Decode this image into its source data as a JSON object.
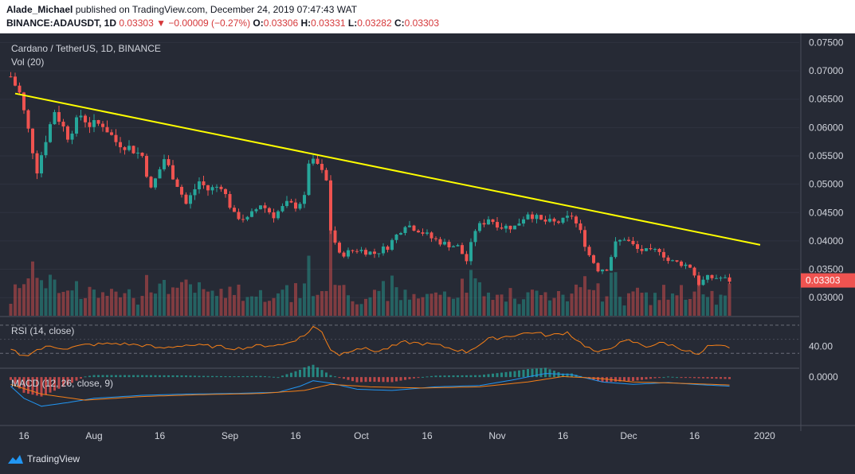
{
  "header": {
    "author": "Alade_Michael",
    "published": " published on TradingView.com, December 24, 2019 07:47:43 WAT",
    "symbol": "BINANCE:ADAUSDT, 1D",
    "last": "0.03303",
    "change": "−0.00009 (−0.27%)",
    "o_label": "O:",
    "o": "0.03306",
    "h_label": "H:",
    "h": "0.03331",
    "l_label": "L:",
    "l": "0.03282",
    "c_label": "C:",
    "c": "0.03303"
  },
  "footer": {
    "brand": "TradingView"
  },
  "colors": {
    "background": "#262a35",
    "up": "#26a69a",
    "down": "#ef5350",
    "trendline": "#ffff00",
    "rsi": "#f57f17",
    "macd": "#2196f3",
    "signal": "#f57f17"
  },
  "chart_data": {
    "type": "candlestick",
    "title": "Cardano / TetherUS, 1D, BINANCE",
    "volume_label": "Vol (20)",
    "rsi_label": "RSI (14, close)",
    "macd_label": "MACD (12, 26, close, 9)",
    "last_price_label": "0.03303",
    "price_axis": {
      "ticks": [
        0.075,
        0.07,
        0.065,
        0.06,
        0.055,
        0.05,
        0.045,
        0.04,
        0.035,
        0.03
      ],
      "tick_labels": [
        "0.07500",
        "0.07000",
        "0.06500",
        "0.06000",
        "0.05500",
        "0.05000",
        "0.04500",
        "0.04000",
        "0.03500",
        "0.03000"
      ]
    },
    "rsi_axis": {
      "tick": 40,
      "tick_label": "40.00",
      "upper_band": 70,
      "lower_band": 30,
      "range": [
        10,
        80
      ]
    },
    "macd_axis": {
      "tick": 0,
      "tick_label": "0.0000",
      "range": [
        -0.0068,
        0.0012
      ]
    },
    "x_axis": {
      "ticks": [
        "2019-07-16",
        "2019-08-01",
        "2019-08-16",
        "2019-09-01",
        "2019-09-16",
        "2019-10-01",
        "2019-10-16",
        "2019-11-01",
        "2019-11-16",
        "2019-12-01",
        "2019-12-16",
        "2020-01-01"
      ],
      "tick_labels": [
        "16",
        "Aug",
        "16",
        "Sep",
        "16",
        "Oct",
        "16",
        "Nov",
        "16",
        "Dec",
        "16",
        "2020"
      ]
    },
    "start_date": "2019-07-13",
    "trendline": {
      "from": [
        "2019-07-14",
        0.066
      ],
      "to": [
        "2019-12-31",
        0.0393
      ]
    },
    "price_path": [
      [
        "2019-07-13",
        0.069
      ],
      [
        "2019-07-15",
        0.066
      ],
      [
        "2019-07-17",
        0.0595
      ],
      [
        "2019-07-19",
        0.0525
      ],
      [
        "2019-07-21",
        0.058
      ],
      [
        "2019-07-23",
        0.063
      ],
      [
        "2019-07-26",
        0.0585
      ],
      [
        "2019-07-29",
        0.0622
      ],
      [
        "2019-07-31",
        0.0605
      ],
      [
        "2019-08-03",
        0.0606
      ],
      [
        "2019-08-06",
        0.0575
      ],
      [
        "2019-08-09",
        0.0565
      ],
      [
        "2019-08-12",
        0.055
      ],
      [
        "2019-08-14",
        0.049
      ],
      [
        "2019-08-17",
        0.0545
      ],
      [
        "2019-08-20",
        0.05
      ],
      [
        "2019-08-22",
        0.0465
      ],
      [
        "2019-08-25",
        0.0505
      ],
      [
        "2019-08-27",
        0.049
      ],
      [
        "2019-08-30",
        0.0498
      ],
      [
        "2019-09-02",
        0.0445
      ],
      [
        "2019-09-05",
        0.0438
      ],
      [
        "2019-09-08",
        0.0465
      ],
      [
        "2019-09-11",
        0.0445
      ],
      [
        "2019-09-14",
        0.0465
      ],
      [
        "2019-09-16",
        0.0462
      ],
      [
        "2019-09-18",
        0.0475
      ],
      [
        "2019-09-19",
        0.054
      ],
      [
        "2019-09-21",
        0.0535
      ],
      [
        "2019-09-23",
        0.0505
      ],
      [
        "2019-09-24",
        0.042
      ],
      [
        "2019-09-26",
        0.0375
      ],
      [
        "2019-09-30",
        0.0385
      ],
      [
        "2019-10-04",
        0.0378
      ],
      [
        "2019-10-07",
        0.039
      ],
      [
        "2019-10-11",
        0.043
      ],
      [
        "2019-10-14",
        0.042
      ],
      [
        "2019-10-17",
        0.0405
      ],
      [
        "2019-10-20",
        0.0395
      ],
      [
        "2019-10-23",
        0.039
      ],
      [
        "2019-10-25",
        0.0365
      ],
      [
        "2019-10-27",
        0.042
      ],
      [
        "2019-10-30",
        0.044
      ],
      [
        "2019-11-02",
        0.0425
      ],
      [
        "2019-11-05",
        0.0425
      ],
      [
        "2019-11-08",
        0.045
      ],
      [
        "2019-11-11",
        0.0435
      ],
      [
        "2019-11-14",
        0.0432
      ],
      [
        "2019-11-16",
        0.0435
      ],
      [
        "2019-11-18",
        0.0445
      ],
      [
        "2019-11-20",
        0.0415
      ],
      [
        "2019-11-22",
        0.0375
      ],
      [
        "2019-11-24",
        0.035
      ],
      [
        "2019-11-26",
        0.0352
      ],
      [
        "2019-11-28",
        0.0395
      ],
      [
        "2019-11-30",
        0.0405
      ],
      [
        "2019-12-03",
        0.0385
      ],
      [
        "2019-12-06",
        0.038
      ],
      [
        "2019-12-08",
        0.0385
      ],
      [
        "2019-12-10",
        0.0365
      ],
      [
        "2019-12-13",
        0.036
      ],
      [
        "2019-12-15",
        0.0355
      ],
      [
        "2019-12-17",
        0.0325
      ],
      [
        "2019-12-19",
        0.0335
      ],
      [
        "2019-12-22",
        0.0335
      ],
      [
        "2019-12-24",
        0.03303
      ]
    ],
    "rsi_path": [
      [
        "2019-07-13",
        35
      ],
      [
        "2019-07-16",
        26
      ],
      [
        "2019-07-19",
        35
      ],
      [
        "2019-07-22",
        40
      ],
      [
        "2019-07-26",
        37
      ],
      [
        "2019-07-30",
        42
      ],
      [
        "2019-08-06",
        44
      ],
      [
        "2019-08-13",
        41
      ],
      [
        "2019-08-16",
        37
      ],
      [
        "2019-08-22",
        42
      ],
      [
        "2019-08-28",
        40
      ],
      [
        "2019-09-03",
        37
      ],
      [
        "2019-09-08",
        41
      ],
      [
        "2019-09-13",
        42
      ],
      [
        "2019-09-18",
        55
      ],
      [
        "2019-09-20",
        68
      ],
      [
        "2019-09-22",
        60
      ],
      [
        "2019-09-24",
        36
      ],
      [
        "2019-09-26",
        28
      ],
      [
        "2019-09-30",
        38
      ],
      [
        "2019-10-05",
        33
      ],
      [
        "2019-10-11",
        46
      ],
      [
        "2019-10-18",
        42
      ],
      [
        "2019-10-25",
        32
      ],
      [
        "2019-10-30",
        50
      ],
      [
        "2019-11-05",
        56
      ],
      [
        "2019-11-09",
        60
      ],
      [
        "2019-11-13",
        55
      ],
      [
        "2019-11-17",
        60
      ],
      [
        "2019-11-20",
        45
      ],
      [
        "2019-11-24",
        30
      ],
      [
        "2019-11-28",
        42
      ],
      [
        "2019-12-01",
        48
      ],
      [
        "2019-12-05",
        40
      ],
      [
        "2019-12-09",
        45
      ],
      [
        "2019-12-13",
        37
      ],
      [
        "2019-12-17",
        27
      ],
      [
        "2019-12-19",
        39
      ],
      [
        "2019-12-22",
        40
      ],
      [
        "2019-12-24",
        39
      ]
    ],
    "macd_path": [
      [
        "2019-07-13",
        -0.0015
      ],
      [
        "2019-07-16",
        -0.0035
      ],
      [
        "2019-07-20",
        -0.0048
      ],
      [
        "2019-07-26",
        -0.0042
      ],
      [
        "2019-08-01",
        -0.0035
      ],
      [
        "2019-08-12",
        -0.003
      ],
      [
        "2019-08-22",
        -0.0028
      ],
      [
        "2019-09-02",
        -0.0027
      ],
      [
        "2019-09-12",
        -0.0025
      ],
      [
        "2019-09-17",
        -0.0015
      ],
      [
        "2019-09-20",
        -0.0006
      ],
      [
        "2019-09-24",
        -0.001
      ],
      [
        "2019-09-30",
        -0.002
      ],
      [
        "2019-10-08",
        -0.0022
      ],
      [
        "2019-10-18",
        -0.0016
      ],
      [
        "2019-10-28",
        -0.0014
      ],
      [
        "2019-11-05",
        -0.0004
      ],
      [
        "2019-11-12",
        0.0006
      ],
      [
        "2019-11-18",
        0.0004
      ],
      [
        "2019-11-25",
        -0.0008
      ],
      [
        "2019-12-02",
        -0.0012
      ],
      [
        "2019-12-10",
        -0.0009
      ],
      [
        "2019-12-16",
        -0.0012
      ],
      [
        "2019-12-24",
        -0.0015
      ]
    ],
    "signal_path": [
      [
        "2019-07-13",
        -0.0012
      ],
      [
        "2019-07-20",
        -0.0028
      ],
      [
        "2019-07-30",
        -0.0038
      ],
      [
        "2019-08-12",
        -0.0032
      ],
      [
        "2019-08-25",
        -0.0029
      ],
      [
        "2019-09-08",
        -0.0027
      ],
      [
        "2019-09-18",
        -0.0022
      ],
      [
        "2019-09-24",
        -0.0012
      ],
      [
        "2019-10-03",
        -0.0016
      ],
      [
        "2019-10-15",
        -0.0018
      ],
      [
        "2019-10-28",
        -0.0016
      ],
      [
        "2019-11-08",
        -0.0008
      ],
      [
        "2019-11-16",
        0.0001
      ],
      [
        "2019-11-24",
        -0.0002
      ],
      [
        "2019-12-02",
        -0.0008
      ],
      [
        "2019-12-12",
        -0.001
      ],
      [
        "2019-12-24",
        -0.0013
      ]
    ]
  }
}
